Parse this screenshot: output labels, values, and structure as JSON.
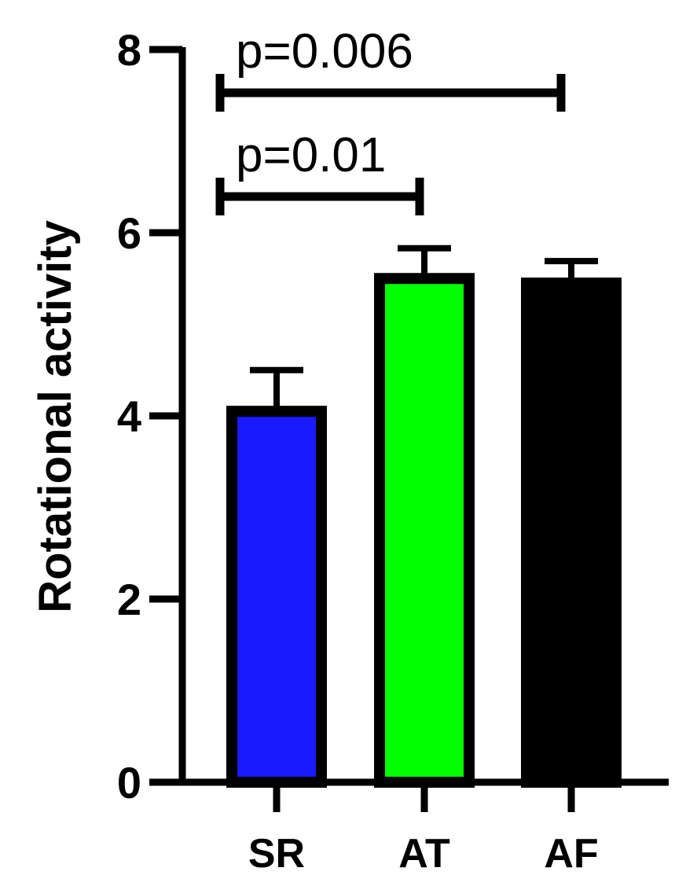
{
  "chart_data": {
    "type": "bar",
    "title": "",
    "xlabel": "",
    "ylabel": "Rotational activity",
    "ylim": [
      0,
      8
    ],
    "yticks": [
      0,
      2,
      4,
      6,
      8
    ],
    "categories": [
      "SR",
      "AT",
      "AF"
    ],
    "values": [
      4.05,
      5.5,
      5.45
    ],
    "errors": [
      0.45,
      0.33,
      0.24
    ],
    "colors": [
      "#1a1aff",
      "#00ff00",
      "#000000"
    ],
    "significance": [
      {
        "from": 0,
        "to": 1,
        "label": "p=0.01"
      },
      {
        "from": 0,
        "to": 2,
        "label": "p=0.006"
      }
    ]
  }
}
